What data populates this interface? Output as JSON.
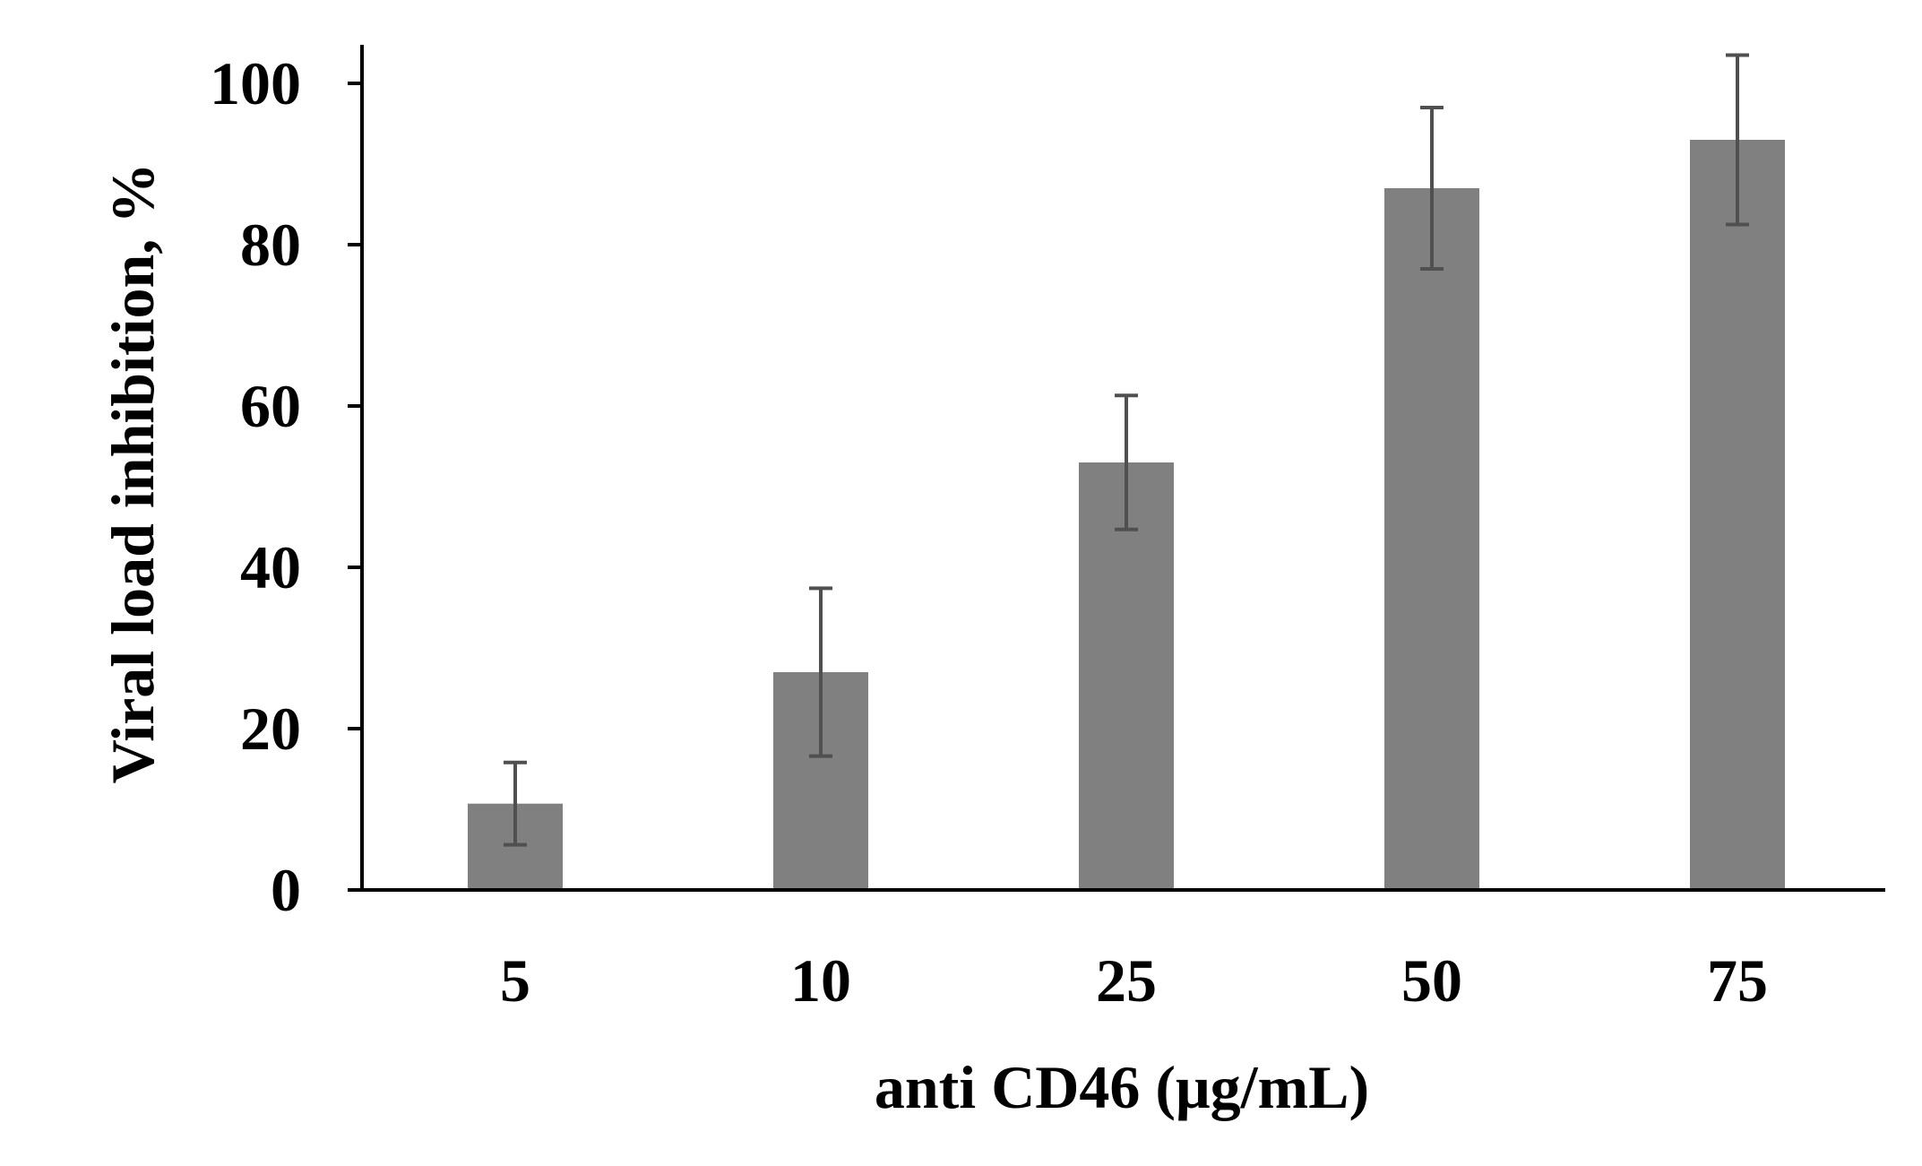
{
  "chart_data": {
    "type": "bar",
    "title": "",
    "xlabel": "anti CD46 (μg/mL)",
    "ylabel": "Viral load inhibition, %",
    "categories": [
      "5",
      "10",
      "25",
      "50",
      "75"
    ],
    "series": [
      {
        "values": [
          10.7,
          27.0,
          53.0,
          87.0,
          93.0
        ],
        "error": [
          5.1,
          10.4,
          8.3,
          10.0,
          10.5
        ]
      }
    ],
    "ylim": [
      0,
      100
    ],
    "yticks": [
      0,
      20,
      40,
      60,
      80,
      100
    ],
    "ytick_labels": [
      "0",
      "20",
      "40",
      "60",
      "80",
      "100"
    ],
    "grid": false,
    "legend": "none",
    "colors": {
      "bar": "#808080",
      "error_bar": "#505050",
      "axis": "#000000"
    }
  }
}
